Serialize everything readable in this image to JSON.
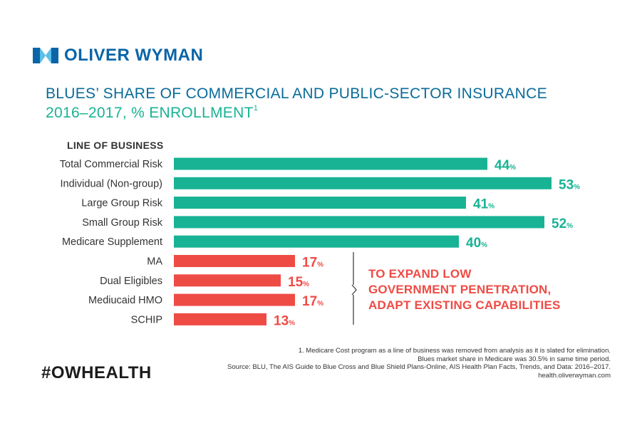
{
  "brand": {
    "name": "OLIVER WYMAN",
    "color": "#0a64a8"
  },
  "title": "BLUES’ SHARE OF COMMERCIAL AND PUBLIC-SECTOR INSURANCE",
  "subtitle": "2016–2017, % ENROLLMENT",
  "subtitle_note": "1",
  "colors": {
    "commercial": "#18b394",
    "public": "#ef4b45",
    "title": "#0a6b9a"
  },
  "chart_data": {
    "type": "bar",
    "orientation": "horizontal",
    "category_header": "LINE OF BUSINESS",
    "unit": "%",
    "xlim": [
      0,
      53
    ],
    "categories": [
      "Total Commercial Risk",
      "Individual (Non-group)",
      "Large Group Risk",
      "Small Group Risk",
      "Medicare Supplement",
      "MA",
      "Dual Eligibles",
      "Mediucaid HMO",
      "SCHIP"
    ],
    "values": [
      44,
      53,
      41,
      52,
      40,
      17,
      15,
      17,
      13
    ],
    "groups": [
      "commercial",
      "commercial",
      "commercial",
      "commercial",
      "commercial",
      "public",
      "public",
      "public",
      "public"
    ],
    "annotation": [
      "TO EXPAND LOW",
      "GOVERNMENT PENETRATION,",
      "ADAPT EXISTING CAPABILITIES"
    ]
  },
  "footnotes": [
    "1. Medicare Cost program as a line of business was removed from analysis as it is slated for elimination.",
    "Blues market share in Medicare was 30.5% in same time period.",
    "Source: BLU, The AIS Guide to Blue Cross and Blue Shield Plans-Online, AIS Health Plan Facts, Trends, and Data: 2016–2017.",
    "health.oliverwyman.com"
  ],
  "hashtag": "#OWHEALTH"
}
